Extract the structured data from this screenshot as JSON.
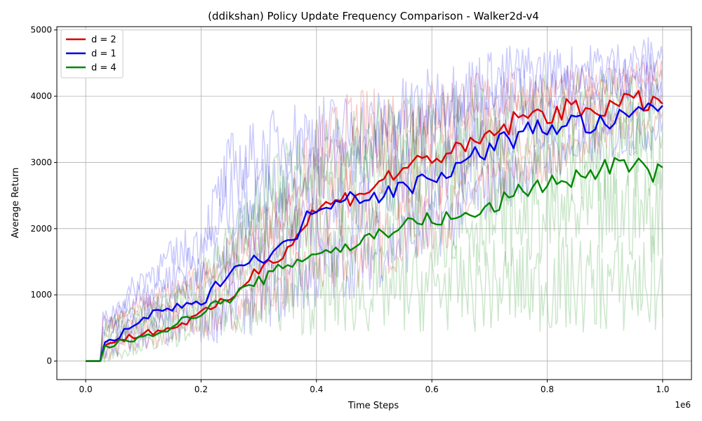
{
  "chart_data": {
    "type": "line",
    "title": "(ddikshan) Policy Update Frequency Comparison - Walker2d-v4",
    "xlabel": "Time Steps",
    "ylabel": "Average Return",
    "x_offset_label": "1e6",
    "xlim": [
      -0.05,
      1.05
    ],
    "ylim": [
      -280,
      5050
    ],
    "x_ticks": [
      0.0,
      0.2,
      0.4,
      0.6,
      0.8,
      1.0
    ],
    "x_tick_labels": [
      "0.0",
      "0.2",
      "0.4",
      "0.6",
      "0.8",
      "1.0"
    ],
    "y_ticks": [
      0,
      1000,
      2000,
      3000,
      4000,
      5000
    ],
    "y_tick_labels": [
      "0",
      "1000",
      "2000",
      "3000",
      "4000",
      "5000"
    ],
    "grid": true,
    "legend_position": "top-left",
    "x": [
      0.0,
      0.02,
      0.025,
      0.03,
      0.04,
      0.05,
      0.1,
      0.15,
      0.2,
      0.25,
      0.3,
      0.35,
      0.4,
      0.45,
      0.5,
      0.55,
      0.6,
      0.65,
      0.7,
      0.75,
      0.8,
      0.85,
      0.9,
      0.95,
      1.0
    ],
    "series": [
      {
        "name": "d = 2",
        "color": "#dd0000",
        "values": [
          0,
          0,
          0,
          230,
          260,
          290,
          420,
          500,
          700,
          950,
          1400,
          1700,
          2300,
          2450,
          2650,
          2900,
          3100,
          3150,
          3400,
          3650,
          3750,
          3800,
          3850,
          3900,
          3950
        ],
        "band_low": [
          0,
          0,
          0,
          50,
          80,
          100,
          250,
          320,
          450,
          600,
          800,
          1000,
          1200,
          1350,
          1500,
          1700,
          1900,
          2100,
          2400,
          2700,
          2900,
          3100,
          3300,
          3500,
          3600
        ],
        "band_high": [
          0,
          0,
          0,
          600,
          650,
          700,
          900,
          1100,
          1300,
          1700,
          2100,
          2500,
          3300,
          3600,
          3700,
          3800,
          3900,
          4000,
          4050,
          4100,
          4150,
          4200,
          4300,
          4350,
          4400
        ]
      },
      {
        "name": "d = 1",
        "color": "#0000ee",
        "values": [
          0,
          0,
          0,
          240,
          280,
          320,
          650,
          800,
          850,
          1400,
          1550,
          1750,
          2350,
          2500,
          2500,
          2600,
          2800,
          2950,
          3250,
          3400,
          3550,
          3600,
          3550,
          3700,
          3900
        ],
        "band_low": [
          0,
          0,
          0,
          60,
          100,
          130,
          300,
          380,
          450,
          650,
          800,
          950,
          1100,
          1250,
          1400,
          1600,
          1800,
          2100,
          2400,
          2650,
          2900,
          3100,
          3200,
          3300,
          3400
        ],
        "band_high": [
          0,
          0,
          0,
          650,
          700,
          800,
          1300,
          1600,
          1900,
          3000,
          3200,
          3450,
          3550,
          3600,
          3650,
          3850,
          4000,
          4200,
          4350,
          4450,
          4450,
          4500,
          4550,
          4600,
          4700
        ]
      },
      {
        "name": "d = 4",
        "color": "#008800",
        "values": [
          0,
          0,
          0,
          200,
          230,
          250,
          380,
          520,
          750,
          950,
          1200,
          1450,
          1650,
          1700,
          1900,
          2050,
          2150,
          2150,
          2300,
          2550,
          2700,
          2750,
          2950,
          2950,
          2800
        ],
        "band_low": [
          0,
          0,
          0,
          30,
          60,
          80,
          220,
          300,
          450,
          600,
          650,
          700,
          750,
          750,
          800,
          800,
          850,
          850,
          850,
          850,
          850,
          850,
          850,
          850,
          850
        ],
        "band_high": [
          0,
          0,
          0,
          500,
          550,
          600,
          800,
          1000,
          1300,
          1900,
          2500,
          2900,
          3200,
          3300,
          3400,
          3500,
          3600,
          3650,
          3700,
          3750,
          3800,
          3850,
          3900,
          3950,
          4000
        ]
      }
    ]
  }
}
